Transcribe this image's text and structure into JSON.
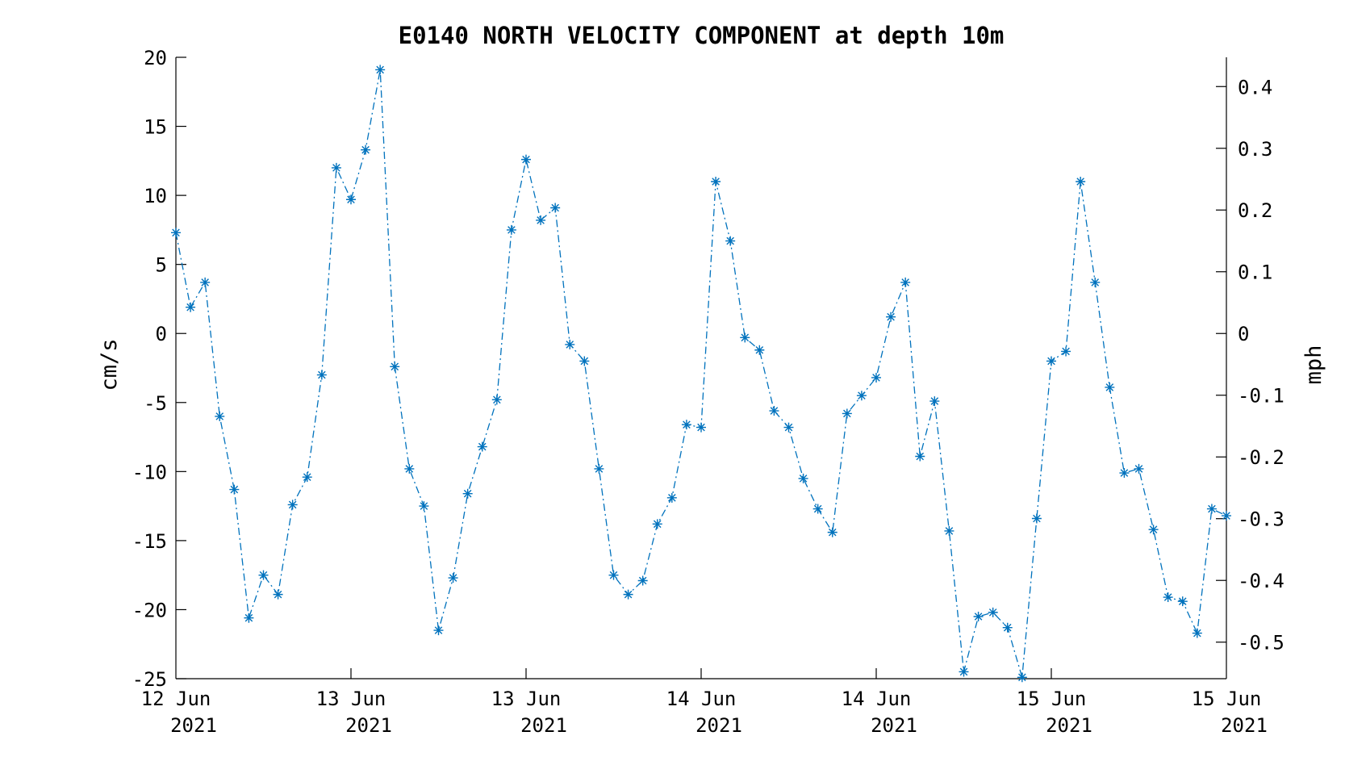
{
  "chart_data": {
    "type": "line",
    "title": "E0140 NORTH VELOCITY COMPONENT at depth 10m",
    "xlabel": "",
    "ylabel": "cm/s",
    "y2label": "mph",
    "series_color": "#0072BD",
    "line_style": "dash-dot",
    "marker": "asterisk",
    "grid": false,
    "legend": "none",
    "xlim_hours": [
      0,
      72
    ],
    "ylim": [
      -25,
      20
    ],
    "y2lim": [
      -0.5592,
      0.4474
    ],
    "y_ticks": [
      "-25",
      "-20",
      "-15",
      "-10",
      "-5",
      "0",
      "5",
      "10",
      "15",
      "20"
    ],
    "y2_ticks": [
      "-0.5",
      "-0.4",
      "-0.3",
      "-0.2",
      "-0.1",
      "0",
      "0.1",
      "0.2",
      "0.3",
      "0.4"
    ],
    "x_tick_labels": [
      {
        "day": "12 Jun",
        "year": "2021"
      },
      {
        "day": "13 Jun",
        "year": "2021"
      },
      {
        "day": "13 Jun",
        "year": "2021"
      },
      {
        "day": "14 Jun",
        "year": "2021"
      },
      {
        "day": "14 Jun",
        "year": "2021"
      },
      {
        "day": "15 Jun",
        "year": "2021"
      },
      {
        "day": "15 Jun",
        "year": "2021"
      }
    ],
    "series": [
      {
        "x_hours": [
          0,
          1,
          2,
          3,
          4,
          5,
          6,
          7,
          8,
          9,
          10,
          11,
          12,
          13,
          14,
          15,
          16,
          17,
          18,
          19,
          20,
          21,
          22,
          23,
          24,
          25,
          26,
          27,
          28,
          29,
          30,
          31,
          32,
          33,
          34,
          35,
          36,
          37,
          38,
          39,
          40,
          41,
          42,
          43,
          44,
          45,
          46,
          47,
          48,
          49,
          50,
          51,
          52,
          53,
          54,
          55,
          56,
          57,
          58,
          59,
          60,
          61,
          62,
          63,
          64,
          65,
          66,
          67,
          68,
          69,
          70,
          71,
          72
        ],
        "values": [
          7.3,
          1.9,
          3.7,
          -6.0,
          -11.3,
          -20.6,
          -17.5,
          -18.9,
          -12.4,
          -10.4,
          -3.0,
          12.0,
          9.7,
          13.3,
          19.1,
          -2.4,
          -9.8,
          -12.5,
          -21.5,
          -17.7,
          -11.6,
          -8.2,
          -4.8,
          7.5,
          12.6,
          8.2,
          9.1,
          -0.8,
          -2.0,
          -9.8,
          -17.5,
          -18.9,
          -17.9,
          -13.8,
          -11.9,
          -6.6,
          -6.8,
          11.0,
          6.7,
          -0.3,
          -1.2,
          -5.6,
          -6.8,
          -10.5,
          -12.7,
          -14.4,
          -5.8,
          -4.5,
          -3.2,
          1.2,
          3.7,
          -8.9,
          -4.9,
          -14.3,
          -24.5,
          -20.5,
          -20.2,
          -21.3,
          -24.9,
          -13.4,
          -2.0,
          -1.3,
          11.0,
          3.7,
          -3.9,
          -10.1,
          -9.8,
          -14.2,
          -19.1,
          -19.4,
          -21.7,
          -12.7,
          -13.2
        ]
      }
    ]
  }
}
